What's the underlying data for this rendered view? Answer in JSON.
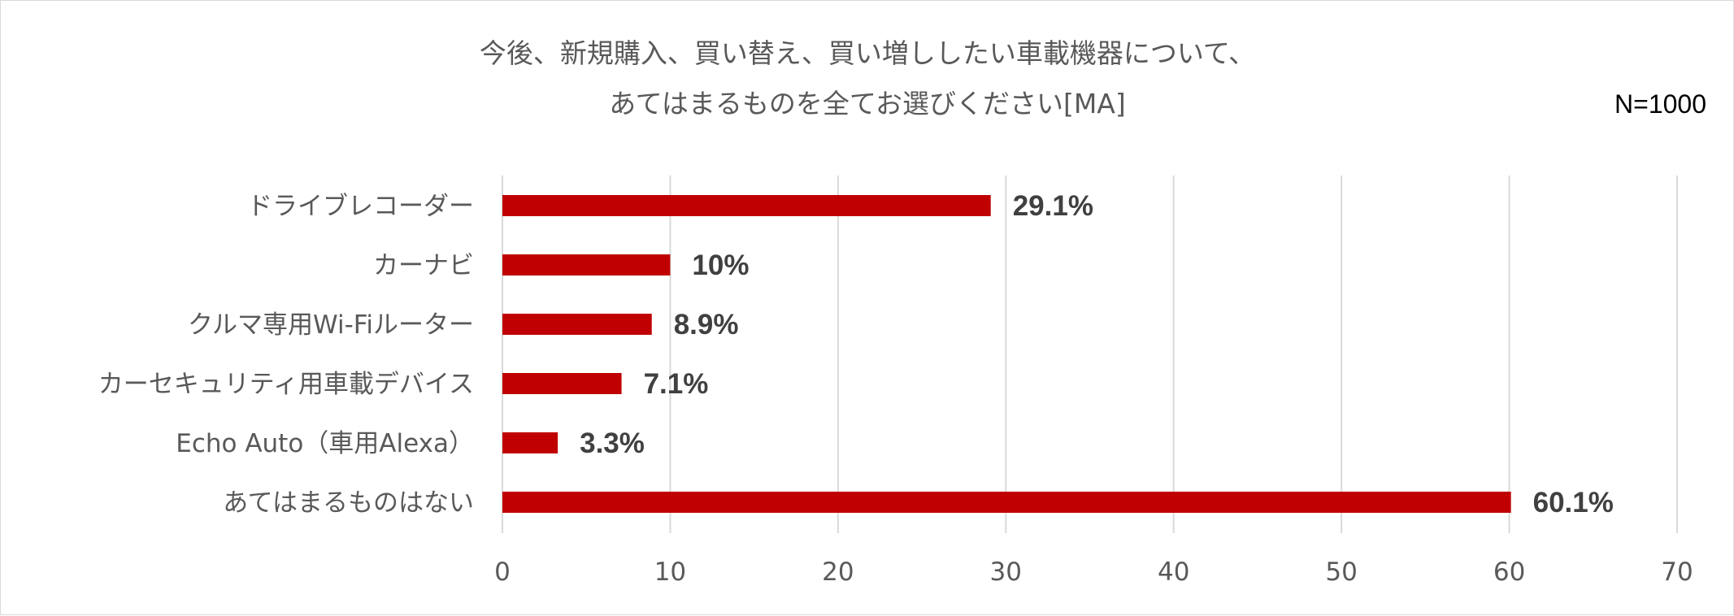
{
  "chart_data": {
    "type": "bar",
    "orientation": "horizontal",
    "title_lines": [
      "今後、新規購入、買い替え、買い増ししたい車載機器について、",
      "あてはまるものを全てお選びください[MA]"
    ],
    "sample_size_label": "N=1000",
    "categories": [
      "ドライブレコーダー",
      "カーナビ",
      "クルマ専用Wi-Fiルーター",
      "カーセキュリティ用車載デバイス",
      "Echo Auto（車用Alexa）",
      "あてはまるものはない"
    ],
    "values": [
      29.1,
      10,
      8.9,
      7.1,
      3.3,
      60.1
    ],
    "value_labels": [
      "29.1%",
      "10%",
      "8.9%",
      "7.1%",
      "3.3%",
      "60.1%"
    ],
    "xlim": [
      0,
      70
    ],
    "x_ticks": [
      0,
      10,
      20,
      30,
      40,
      50,
      60,
      70
    ],
    "grid": true,
    "legend": "none",
    "bar_color": "#C00000",
    "gridline_color": "#D9D9D9"
  }
}
